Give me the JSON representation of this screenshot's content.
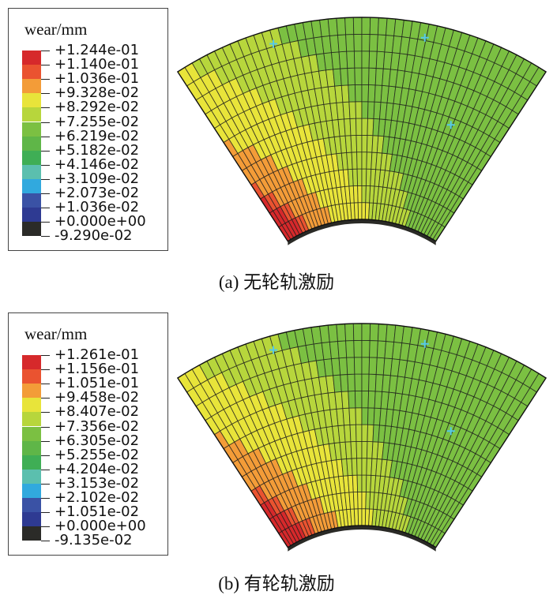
{
  "colors": [
    "#d6292b",
    "#ea5330",
    "#f39c38",
    "#e8e43a",
    "#b7d63c",
    "#7bc042",
    "#5fb648",
    "#3fae55",
    "#5bbfae",
    "#31a9de",
    "#3a52a5",
    "#2e3a92",
    "#2b2b28"
  ],
  "panels": [
    {
      "legend_title": "wear/mm",
      "labels": [
        "+1.244e-01",
        "+1.140e-01",
        "+1.036e-01",
        "+9.328e-02",
        "+8.292e-02",
        "+7.255e-02",
        "+6.219e-02",
        "+5.182e-02",
        "+4.146e-02",
        "+3.109e-02",
        "+2.073e-02",
        "+1.036e-02",
        "+0.000e+00",
        "-9.290e-02"
      ],
      "caption": "(a)  无轮轨激励"
    },
    {
      "legend_title": "wear/mm",
      "labels": [
        "+1.261e-01",
        "+1.156e-01",
        "+1.051e-01",
        "+9.458e-02",
        "+8.407e-02",
        "+7.356e-02",
        "+6.305e-02",
        "+5.255e-02",
        "+4.204e-02",
        "+3.153e-02",
        "+2.102e-02",
        "+1.051e-02",
        "+0.000e+00",
        "-9.135e-02"
      ],
      "caption": "(b)  有轮轨激励"
    }
  ]
}
